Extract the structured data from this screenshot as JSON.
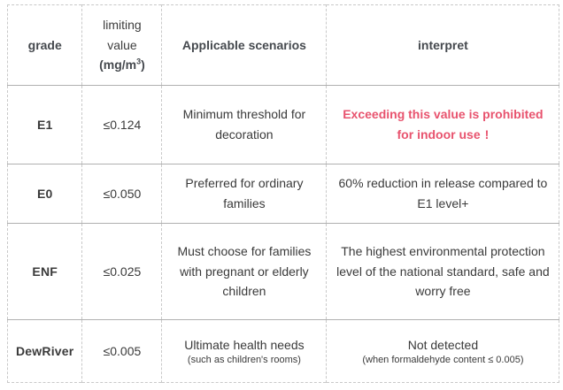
{
  "colors": {
    "accent_red": "#e8536e",
    "border_light": "#c9c9c9",
    "border_row": "#b0b0b0",
    "text": "#3a3a3a"
  },
  "table": {
    "header": {
      "grade": "grade",
      "limit_line1": "limiting",
      "limit_line2": "value",
      "limit_unit_prefix": "(mg/m",
      "limit_unit_sup": "3",
      "limit_unit_suffix": ")",
      "scenarios": "Applicable scenarios",
      "interpret": "interpret"
    },
    "rows": [
      {
        "grade": "E1",
        "limit": "≤0.124",
        "scenario": "Minimum threshold for decoration",
        "interpret": "Exceeding this value is prohibited for indoor use",
        "interpret_bang": "!"
      },
      {
        "grade": "E0",
        "limit": "≤0.050",
        "scenario": "Preferred for ordinary families",
        "interpret": "60% reduction in release compared to E1 level+"
      },
      {
        "grade": "ENF",
        "limit": "≤0.025",
        "scenario": "Must choose for families with pregnant or elderly children",
        "interpret": "The highest environmental protection level of the national standard, safe and worry free"
      },
      {
        "grade": "DewRiver",
        "limit": "≤0.005",
        "scenario": "Ultimate health needs",
        "scenario_note": "(such as children's rooms)",
        "interpret": "Not detected",
        "interpret_note": "(when formaldehyde content ≤ 0.005)"
      }
    ]
  },
  "chart_data": {
    "type": "table",
    "title": "",
    "columns": [
      "grade",
      "limiting value (mg/m³)",
      "Applicable scenarios",
      "interpret"
    ],
    "rows": [
      [
        "E1",
        "≤0.124",
        "Minimum threshold for decoration",
        "Exceeding this value is prohibited for indoor use!"
      ],
      [
        "E0",
        "≤0.050",
        "Preferred for ordinary families",
        "60% reduction in release compared to E1 level+"
      ],
      [
        "ENF",
        "≤0.025",
        "Must choose for families with pregnant or elderly children",
        "The highest environmental protection level of the national standard, safe and worry free"
      ],
      [
        "DewRiver",
        "≤0.005",
        "Ultimate health needs (such as children's rooms)",
        "Not detected (when formaldehyde content ≤ 0.005)"
      ]
    ]
  }
}
